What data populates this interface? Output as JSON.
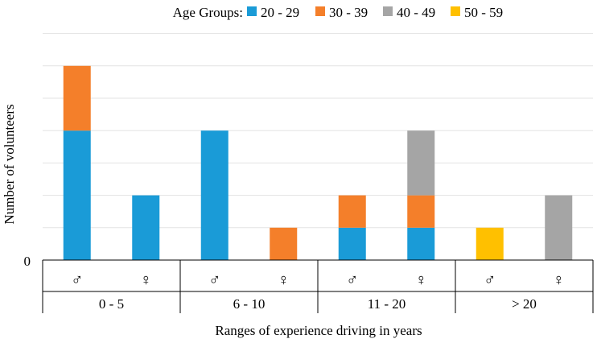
{
  "chart_data": {
    "type": "bar",
    "stacked": true,
    "legend": {
      "title": "Age Groups:",
      "position": "top"
    },
    "series": [
      {
        "name": "20 - 29",
        "color": "#1a9bd7",
        "values": [
          4,
          2,
          4,
          0,
          1,
          1,
          0,
          0
        ]
      },
      {
        "name": "30 - 39",
        "color": "#f47f2a",
        "values": [
          2,
          0,
          0,
          1,
          1,
          1,
          0,
          0
        ]
      },
      {
        "name": "40 - 49",
        "color": "#a5a5a5",
        "values": [
          0,
          0,
          0,
          0,
          0,
          2,
          0,
          2
        ]
      },
      {
        "name": "50 - 59",
        "color": "#ffc000",
        "values": [
          0,
          0,
          0,
          0,
          0,
          0,
          1,
          0
        ]
      }
    ],
    "categories": [
      "♂",
      "♀",
      "♂",
      "♀",
      "♂",
      "♀",
      "♂",
      "♀"
    ],
    "groups": [
      {
        "label": "0 - 5",
        "count": 2
      },
      {
        "label": "6 - 10",
        "count": 2
      },
      {
        "label": "11 - 20",
        "count": 2
      },
      {
        "label": "> 20",
        "count": 2
      }
    ],
    "xlabel": "Ranges of experience driving in years",
    "ylabel": "Number of volunteers",
    "ytick_label": "0",
    "ylim": [
      0,
      7
    ],
    "grid": true
  }
}
